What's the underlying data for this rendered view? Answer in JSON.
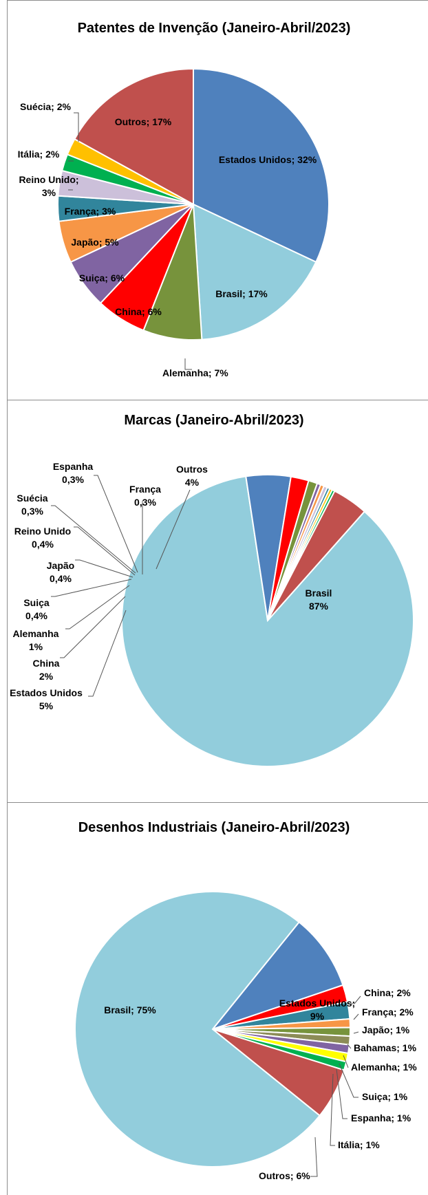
{
  "chart_data": [
    {
      "type": "pie",
      "title": "Patentes de Invenção (Janeiro-Abril/2023)",
      "slices": [
        {
          "label": "Estados Unidos",
          "value": 32,
          "value_text": "32%",
          "color": "#4F81BD"
        },
        {
          "label": "Brasil",
          "value": 17,
          "value_text": "17%",
          "color": "#92CDDC"
        },
        {
          "label": "Alemanha",
          "value": 7,
          "value_text": "7%",
          "color": "#77933C"
        },
        {
          "label": "China",
          "value": 6,
          "value_text": "6%",
          "color": "#FF0000"
        },
        {
          "label": "Suiça",
          "value": 6,
          "value_text": "6%",
          "color": "#8064A2"
        },
        {
          "label": "Japão",
          "value": 5,
          "value_text": "5%",
          "color": "#F79646"
        },
        {
          "label": "França",
          "value": 3,
          "value_text": "3%",
          "color": "#31859C"
        },
        {
          "label": "Reino Unido",
          "value": 3,
          "value_text": "3%",
          "color": "#CCC0DA"
        },
        {
          "label": "Itália",
          "value": 2,
          "value_text": "2%",
          "color": "#00B050"
        },
        {
          "label": "Suécia",
          "value": 2,
          "value_text": "2%",
          "color": "#FFC000"
        },
        {
          "label": "Outros",
          "value": 17,
          "value_text": "17%",
          "color": "#C0504D"
        }
      ]
    },
    {
      "type": "pie",
      "title": "Marcas (Janeiro-Abril/2023)",
      "slices": [
        {
          "label": "Brasil",
          "value": 87,
          "value_text": "87%",
          "color": "#92CDDC"
        },
        {
          "label": "Estados Unidos",
          "value": 5,
          "value_text": "5%",
          "color": "#4F81BD"
        },
        {
          "label": "China",
          "value": 2,
          "value_text": "2%",
          "color": "#FF0000"
        },
        {
          "label": "Alemanha",
          "value": 1,
          "value_text": "1%",
          "color": "#77933C"
        },
        {
          "label": "Suiça",
          "value": 0.4,
          "value_text": "0,4%",
          "color": "#8064A2"
        },
        {
          "label": "Japão",
          "value": 0.4,
          "value_text": "0,4%",
          "color": "#F79646"
        },
        {
          "label": "Reino Unido",
          "value": 0.4,
          "value_text": "0,4%",
          "color": "#CCC0DA"
        },
        {
          "label": "Suécia",
          "value": 0.3,
          "value_text": "0,3%",
          "color": "#31859C"
        },
        {
          "label": "Espanha",
          "value": 0.3,
          "value_text": "0,3%",
          "color": "#FFC000"
        },
        {
          "label": "França",
          "value": 0.3,
          "value_text": "0,3%",
          "color": "#00B050"
        },
        {
          "label": "Outros",
          "value": 4,
          "value_text": "4%",
          "color": "#C0504D"
        }
      ]
    },
    {
      "type": "pie",
      "title": "Desenhos Industriais (Janeiro-Abril/2023)",
      "slices": [
        {
          "label": "Estados Unidos",
          "value": 9,
          "value_text": "9%",
          "color": "#4F81BD"
        },
        {
          "label": "China",
          "value": 2,
          "value_text": "2%",
          "color": "#FF0000"
        },
        {
          "label": "França",
          "value": 2,
          "value_text": "2%",
          "color": "#31859C"
        },
        {
          "label": "Japão",
          "value": 1,
          "value_text": "1%",
          "color": "#F79646"
        },
        {
          "label": "Bahamas",
          "value": 1,
          "value_text": "1%",
          "color": "#77933C"
        },
        {
          "label": "Alemanha",
          "value": 1,
          "value_text": "1%",
          "color": "#8C8C57"
        },
        {
          "label": "Suiça",
          "value": 1,
          "value_text": "1%",
          "color": "#8064A2"
        },
        {
          "label": "Espanha",
          "value": 1,
          "value_text": "1%",
          "color": "#FFFF00"
        },
        {
          "label": "Itália",
          "value": 1,
          "value_text": "1%",
          "color": "#00B050"
        },
        {
          "label": "Outros",
          "value": 6,
          "value_text": "6%",
          "color": "#C0504D"
        },
        {
          "label": "Brasil",
          "value": 75,
          "value_text": "75%",
          "color": "#92CDDC"
        }
      ]
    }
  ]
}
